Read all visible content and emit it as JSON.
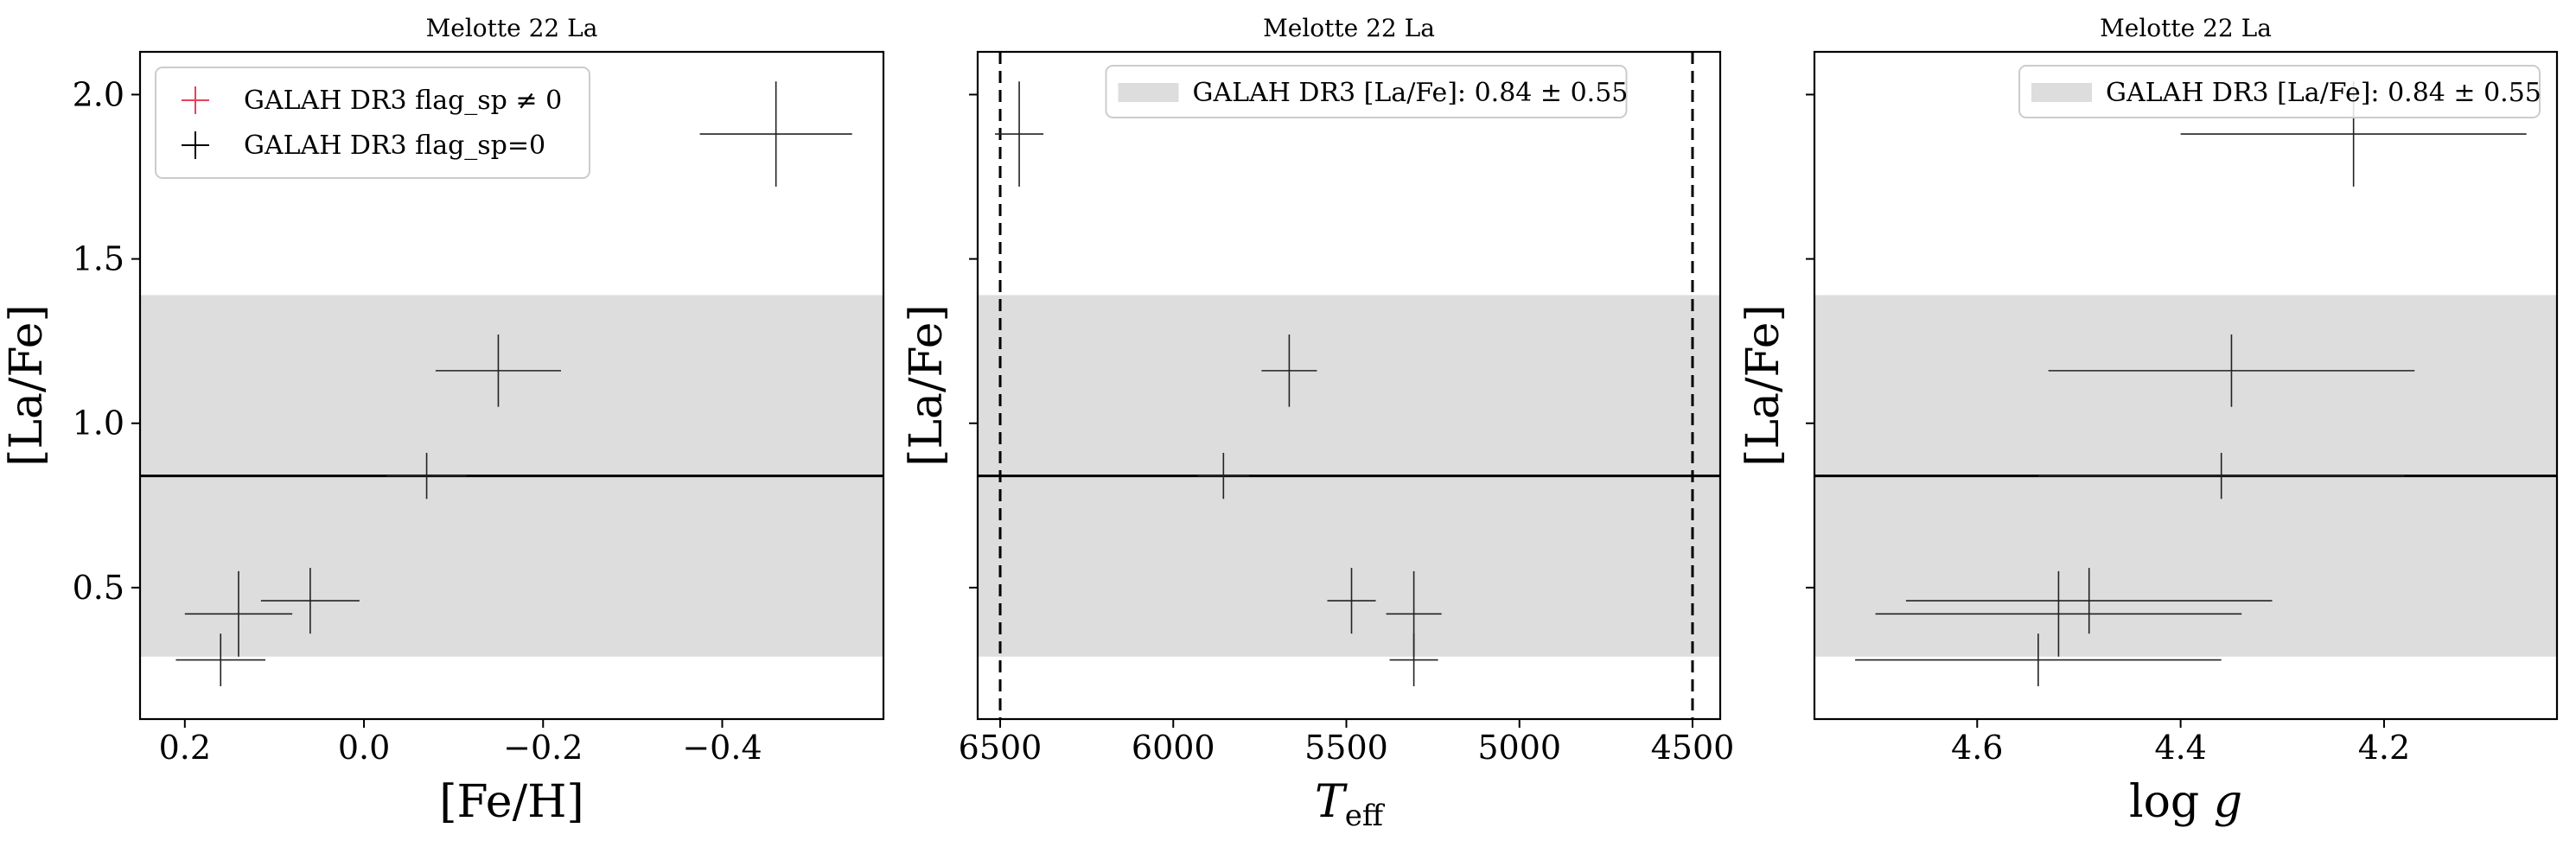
{
  "chart_data": [
    {
      "type": "scatter",
      "title": "Melotte 22 La",
      "xlabel": "[Fe/H]",
      "ylabel": "[La/Fe]",
      "xlim": [
        0.25,
        -0.58
      ],
      "ylim": [
        0.1,
        2.13
      ],
      "x_inverted": true,
      "xticks": [
        0.2,
        0.0,
        -0.2,
        -0.4
      ],
      "xtick_labels": [
        "0.2",
        "0.0",
        "−0.2",
        "−0.4"
      ],
      "yticks": [
        0.5,
        1.0,
        1.5,
        2.0
      ],
      "ytick_labels": [
        "0.5",
        "1.0",
        "1.5",
        "2.0"
      ],
      "ytick_labels_visible": true,
      "band": {
        "center": 0.84,
        "halfwidth": 0.55,
        "color": "#dddddd"
      },
      "mean_line": 0.84,
      "legend": {
        "position": "top-left",
        "entries": [
          {
            "label": "GALAH DR3 flag_sp ≠ 0",
            "color": "#e8405a",
            "kind": "cross"
          },
          {
            "label": "GALAH DR3 flag_sp=0",
            "color": "#000000",
            "kind": "cross"
          }
        ]
      },
      "points": [
        {
          "x": -0.46,
          "y": 1.88,
          "xerr": 0.085,
          "yerr": 0.16
        },
        {
          "x": -0.15,
          "y": 1.16,
          "xerr": 0.07,
          "yerr": 0.11
        },
        {
          "x": -0.07,
          "y": 0.84,
          "xerr": 0.045,
          "yerr": 0.07
        },
        {
          "x": 0.06,
          "y": 0.46,
          "xerr": 0.055,
          "yerr": 0.1
        },
        {
          "x": 0.14,
          "y": 0.42,
          "xerr": 0.06,
          "yerr": 0.13
        },
        {
          "x": 0.16,
          "y": 0.28,
          "xerr": 0.05,
          "yerr": 0.08
        }
      ]
    },
    {
      "type": "scatter",
      "title": "Melotte 22 La",
      "xlabel": "T_eff",
      "ylabel": "[La/Fe]",
      "xlim": [
        6565,
        4420
      ],
      "ylim": [
        0.1,
        2.13
      ],
      "x_inverted": true,
      "xticks": [
        6500,
        6000,
        5500,
        5000,
        4500
      ],
      "xtick_labels": [
        "6500",
        "6000",
        "5500",
        "5000",
        "4500"
      ],
      "yticks": [
        0.5,
        1.0,
        1.5,
        2.0
      ],
      "ytick_labels": [
        "",
        "",
        "",
        ""
      ],
      "ytick_labels_visible": false,
      "band": {
        "center": 0.84,
        "halfwidth": 0.55,
        "color": "#dddddd"
      },
      "mean_line": 0.84,
      "vlines": [
        6500,
        4500
      ],
      "legend": {
        "position": "top-center",
        "entries": [
          {
            "label": "GALAH DR3 [La/Fe]: 0.84 ± 0.55",
            "color": "#dddddd",
            "kind": "patch"
          }
        ]
      },
      "points": [
        {
          "x": 6445,
          "y": 1.88,
          "xerr": 70,
          "yerr": 0.16
        },
        {
          "x": 5665,
          "y": 1.16,
          "xerr": 80,
          "yerr": 0.11
        },
        {
          "x": 5855,
          "y": 0.84,
          "xerr": 75,
          "yerr": 0.07
        },
        {
          "x": 5485,
          "y": 0.46,
          "xerr": 70,
          "yerr": 0.1
        },
        {
          "x": 5305,
          "y": 0.42,
          "xerr": 80,
          "yerr": 0.13
        },
        {
          "x": 5305,
          "y": 0.28,
          "xerr": 70,
          "yerr": 0.08
        }
      ]
    },
    {
      "type": "scatter",
      "title": "Melotte 22 La",
      "xlabel": "log g",
      "ylabel": "[La/Fe]",
      "xlim": [
        4.76,
        4.03
      ],
      "ylim": [
        0.1,
        2.13
      ],
      "x_inverted": true,
      "xticks": [
        4.6,
        4.4,
        4.2
      ],
      "xtick_labels": [
        "4.6",
        "4.4",
        "4.2"
      ],
      "yticks": [
        0.5,
        1.0,
        1.5,
        2.0
      ],
      "ytick_labels": [
        "",
        "",
        "",
        ""
      ],
      "ytick_labels_visible": false,
      "band": {
        "center": 0.84,
        "halfwidth": 0.55,
        "color": "#dddddd"
      },
      "mean_line": 0.84,
      "legend": {
        "position": "top-right",
        "entries": [
          {
            "label": "GALAH DR3 [La/Fe]: 0.84 ± 0.55",
            "color": "#dddddd",
            "kind": "patch"
          }
        ]
      },
      "points": [
        {
          "x": 4.23,
          "y": 1.88,
          "xerr": 0.17,
          "yerr": 0.16
        },
        {
          "x": 4.35,
          "y": 1.16,
          "xerr": 0.18,
          "yerr": 0.11
        },
        {
          "x": 4.36,
          "y": 0.84,
          "xerr": 0.18,
          "yerr": 0.07
        },
        {
          "x": 4.49,
          "y": 0.46,
          "xerr": 0.18,
          "yerr": 0.1
        },
        {
          "x": 4.52,
          "y": 0.42,
          "xerr": 0.18,
          "yerr": 0.13
        },
        {
          "x": 4.54,
          "y": 0.28,
          "xerr": 0.18,
          "yerr": 0.08
        }
      ]
    }
  ]
}
